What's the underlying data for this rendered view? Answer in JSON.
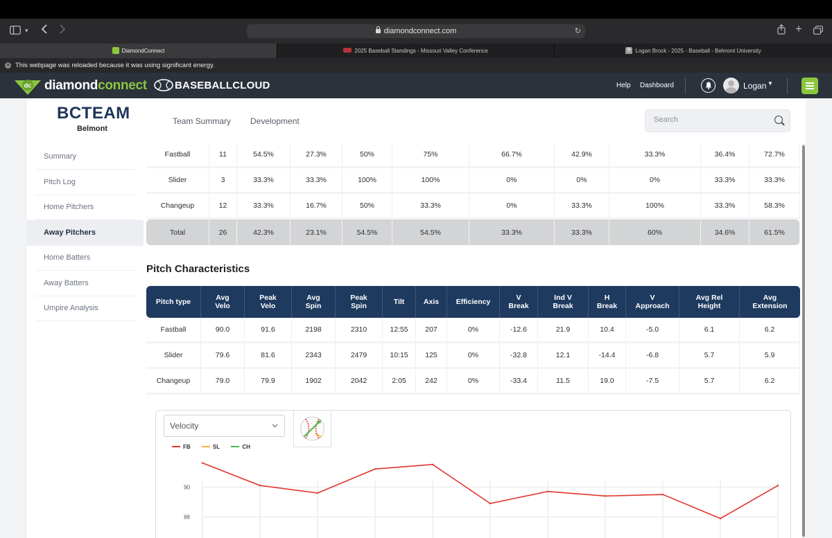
{
  "browser": {
    "url": "diamondconnect.com",
    "tabs": [
      {
        "label": "DiamondConnect",
        "active": true
      },
      {
        "label": "2025 Baseball Standings - Missouri Valley Conference",
        "active": false
      },
      {
        "label": "Logan Brock - 2025 - Baseball - Belmont University",
        "active": false
      }
    ],
    "notice": "This webpage was reloaded because it was using significant energy."
  },
  "header": {
    "brand_diamond": "diamond",
    "brand_connect": "connect",
    "brand_logo_text": "dc",
    "partner": "BASEBALLCLOUD",
    "help": "Help",
    "dashboard": "Dashboard",
    "user": "Logan"
  },
  "team": {
    "title": "BCTEAM",
    "subtitle": "Belmont"
  },
  "top_tabs": [
    "Team Summary",
    "Development"
  ],
  "search": {
    "placeholder": "Search"
  },
  "sidebar": {
    "items": [
      {
        "label": "Summary",
        "active": false
      },
      {
        "label": "Pitch Log",
        "active": false
      },
      {
        "label": "Home Pitchers",
        "active": false
      },
      {
        "label": "Away Pitchers",
        "active": true
      },
      {
        "label": "Home Batters",
        "active": false
      },
      {
        "label": "Away Batters",
        "active": false
      },
      {
        "label": "Umpire Analysis",
        "active": false
      }
    ]
  },
  "pitch_results": {
    "rows": [
      {
        "type": "Fastball",
        "cls": "pt-fb",
        "cells": [
          "11",
          "54.5%",
          "27.3%",
          "50%",
          "75%",
          "66.7%",
          "42.9%",
          "33.3%",
          "36.4%",
          "72.7%"
        ]
      },
      {
        "type": "Slider",
        "cls": "pt-sl",
        "cells": [
          "3",
          "33.3%",
          "33.3%",
          "100%",
          "100%",
          "0%",
          "0%",
          "0%",
          "33.3%",
          "33.3%"
        ]
      },
      {
        "type": "Changeup",
        "cls": "pt-ch",
        "cells": [
          "12",
          "33.3%",
          "16.7%",
          "50%",
          "33.3%",
          "0%",
          "33.3%",
          "100%",
          "33.3%",
          "58.3%"
        ]
      }
    ],
    "total": {
      "type": "Total",
      "cells": [
        "26",
        "42.3%",
        "23.1%",
        "54.5%",
        "54.5%",
        "33.3%",
        "33.3%",
        "60%",
        "34.6%",
        "61.5%"
      ]
    }
  },
  "pitch_characteristics": {
    "title": "Pitch Characteristics",
    "headers": [
      [
        "Pitch type"
      ],
      [
        "Avg",
        "Velo"
      ],
      [
        "Peak",
        "Velo"
      ],
      [
        "Avg",
        "Spin"
      ],
      [
        "Peak",
        "Spin"
      ],
      [
        "Tilt"
      ],
      [
        "Axis"
      ],
      [
        "Efficiency"
      ],
      [
        "V",
        "Break"
      ],
      [
        "Ind V",
        "Break"
      ],
      [
        "H",
        "Break"
      ],
      [
        "V",
        "Approach"
      ],
      [
        "Avg Rel",
        "Height"
      ],
      [
        "Avg",
        "Extension"
      ]
    ],
    "rows": [
      {
        "type": "Fastball",
        "cls": "pt-fb",
        "cells": [
          "90.0",
          "91.6",
          "2198",
          "2310",
          "12:55",
          "207",
          "0%",
          "-12.6",
          "21.9",
          "10.4",
          "-5.0",
          "6.1",
          "6.2"
        ]
      },
      {
        "type": "Slider",
        "cls": "pt-sl",
        "cells": [
          "79.6",
          "81.6",
          "2343",
          "2479",
          "10:15",
          "125",
          "0%",
          "-32.8",
          "12.1",
          "-14.4",
          "-6.8",
          "5.7",
          "5.9"
        ]
      },
      {
        "type": "Changeup",
        "cls": "pt-ch",
        "cells": [
          "79.0",
          "79.9",
          "1902",
          "2042",
          "2:05",
          "242",
          "0%",
          "-33.4",
          "11.5",
          "19.0",
          "-7.5",
          "5.7",
          "6.2"
        ]
      }
    ]
  },
  "chart_select": {
    "selected": "Velocity"
  },
  "chart_data": {
    "type": "line",
    "title": "",
    "xlabel": "",
    "ylabel": "",
    "y_ticks": [
      88,
      90
    ],
    "ylim": [
      86.6,
      92.0
    ],
    "grid": true,
    "legend_position": "top-left",
    "series": [
      {
        "name": "FB",
        "color": "#e0362e",
        "values": [
          91.6,
          90.1,
          89.6,
          91.2,
          91.5,
          88.9,
          89.7,
          89.4,
          89.5,
          87.9,
          90.1
        ]
      },
      {
        "name": "SL",
        "color": "#f2b533",
        "values": []
      },
      {
        "name": "CH",
        "color": "#4cb748",
        "values": []
      }
    ]
  },
  "colors": {
    "header_bg": "#2b323c",
    "brand_green": "#8cc63f",
    "table_header": "#1f3a5f",
    "fastball": "#e0362e",
    "slider": "#f2b533",
    "changeup": "#4cb748"
  }
}
